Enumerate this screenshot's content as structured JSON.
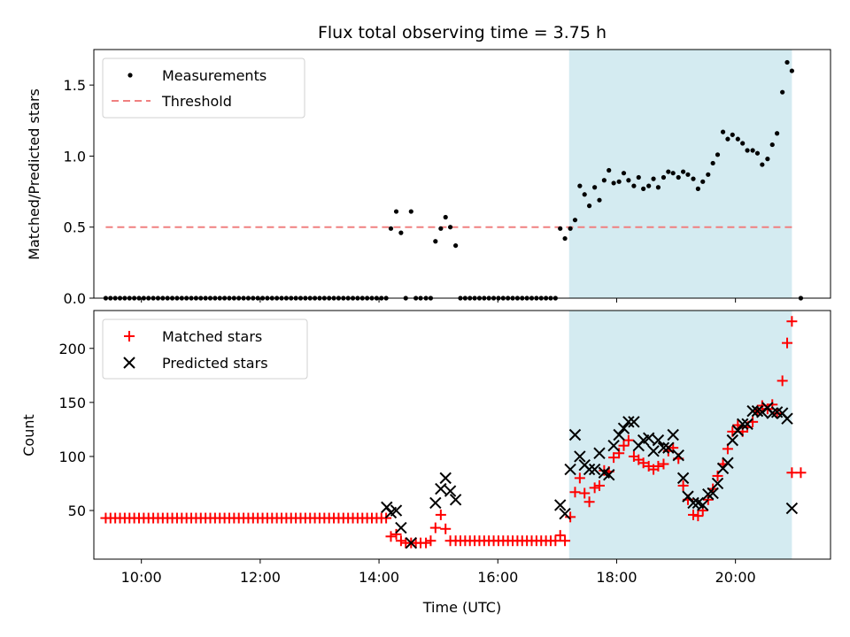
{
  "chart_data": [
    {
      "type": "scatter",
      "title": "Flux total observing time = 3.75 h",
      "xlabel": "",
      "ylabel": "Matched/Predicted stars",
      "xlim": [
        9.2,
        21.6
      ],
      "ylim": [
        0,
        1.75
      ],
      "yticks": [
        0,
        0.5,
        1.0,
        1.5
      ],
      "ytick_labels": [
        "0.0",
        "0.5",
        "1.0",
        "1.5"
      ],
      "xticks": [
        10,
        12,
        14,
        16,
        18,
        20
      ],
      "shaded_x": [
        17.2,
        20.95
      ],
      "shade_color": "#d4ebf1",
      "legend_position": "upper left",
      "legend": [
        "Measurements",
        "Threshold"
      ],
      "threshold": {
        "name": "Threshold",
        "y": 0.5,
        "x": [
          9.4,
          21.0
        ],
        "color": "#f08080",
        "style": "dashed"
      },
      "measurements_color": "#000000",
      "measurements": {
        "name": "Measurements",
        "x": [
          9.4,
          9.48,
          9.56,
          9.64,
          9.72,
          9.8,
          9.88,
          9.96,
          10.04,
          10.12,
          10.2,
          10.28,
          10.36,
          10.44,
          10.52,
          10.6,
          10.68,
          10.76,
          10.84,
          10.92,
          11.0,
          11.08,
          11.16,
          11.24,
          11.32,
          11.4,
          11.48,
          11.56,
          11.64,
          11.72,
          11.8,
          11.88,
          11.96,
          12.04,
          12.12,
          12.2,
          12.28,
          12.36,
          12.44,
          12.52,
          12.6,
          12.68,
          12.76,
          12.84,
          12.92,
          13.0,
          13.08,
          13.16,
          13.24,
          13.32,
          13.4,
          13.48,
          13.56,
          13.64,
          13.72,
          13.8,
          13.88,
          13.96,
          14.04,
          14.12,
          14.2,
          14.29,
          14.37,
          14.45,
          14.54,
          14.62,
          14.7,
          14.79,
          14.87,
          14.95,
          15.04,
          15.12,
          15.2,
          15.29,
          15.37,
          15.45,
          15.53,
          15.61,
          15.69,
          15.77,
          15.85,
          15.93,
          16.01,
          16.09,
          16.17,
          16.25,
          16.33,
          16.41,
          16.49,
          16.57,
          16.65,
          16.73,
          16.81,
          16.89,
          16.97,
          17.05,
          17.13,
          17.22,
          17.3,
          17.38,
          17.46,
          17.54,
          17.63,
          17.71,
          17.79,
          17.87,
          17.95,
          18.04,
          18.12,
          18.2,
          18.29,
          18.37,
          18.45,
          18.54,
          18.62,
          18.7,
          18.79,
          18.87,
          18.95,
          19.04,
          19.12,
          19.2,
          19.29,
          19.37,
          19.45,
          19.54,
          19.62,
          19.7,
          19.79,
          19.87,
          19.95,
          20.04,
          20.12,
          20.2,
          20.29,
          20.37,
          20.45,
          20.54,
          20.62,
          20.7,
          20.79,
          20.87,
          20.95,
          21.1
        ],
        "y": [
          0,
          0,
          0,
          0,
          0,
          0,
          0,
          0,
          0,
          0,
          0,
          0,
          0,
          0,
          0,
          0,
          0,
          0,
          0,
          0,
          0,
          0,
          0,
          0,
          0,
          0,
          0,
          0,
          0,
          0,
          0,
          0,
          0,
          0,
          0,
          0,
          0,
          0,
          0,
          0,
          0,
          0,
          0,
          0,
          0,
          0,
          0,
          0,
          0,
          0,
          0,
          0,
          0,
          0,
          0,
          0,
          0,
          0,
          0,
          0,
          0.49,
          0.61,
          0.46,
          0,
          0.61,
          0,
          0,
          0,
          0,
          0.4,
          0.49,
          0.57,
          0.5,
          0.37,
          0,
          0,
          0,
          0,
          0,
          0,
          0,
          0,
          0,
          0,
          0,
          0,
          0,
          0,
          0,
          0,
          0,
          0,
          0,
          0,
          0,
          0.49,
          0.42,
          0.49,
          0.55,
          0.79,
          0.73,
          0.65,
          0.78,
          0.69,
          0.83,
          0.9,
          0.81,
          0.82,
          0.88,
          0.83,
          0.79,
          0.85,
          0.77,
          0.79,
          0.84,
          0.78,
          0.85,
          0.89,
          0.88,
          0.85,
          0.89,
          0.87,
          0.84,
          0.77,
          0.82,
          0.87,
          0.95,
          1.01,
          1.17,
          1.12,
          1.15,
          1.12,
          1.09,
          1.04,
          1.04,
          1.02,
          0.94,
          0.98,
          1.08,
          1.16,
          1.45,
          1.66,
          1.6,
          0
        ]
      }
    },
    {
      "type": "scatter",
      "title": "",
      "xlabel": "Time (UTC)",
      "ylabel": "Count",
      "xlim": [
        9.2,
        21.6
      ],
      "ylim": [
        5,
        235
      ],
      "yticks": [
        50,
        100,
        150,
        200
      ],
      "xticks": [
        10,
        12,
        14,
        16,
        18,
        20
      ],
      "xtick_labels": [
        "10:00",
        "12:00",
        "14:00",
        "16:00",
        "18:00",
        "20:00"
      ],
      "shaded_x": [
        17.2,
        20.95
      ],
      "shade_color": "#d4ebf1",
      "legend_position": "upper left",
      "legend": [
        "Matched stars",
        "Predicted stars"
      ],
      "series": [
        {
          "name": "Matched stars",
          "marker": "+",
          "color": "#ff0000",
          "x": [
            9.4,
            9.48,
            9.56,
            9.64,
            9.72,
            9.8,
            9.88,
            9.96,
            10.04,
            10.12,
            10.2,
            10.28,
            10.36,
            10.44,
            10.52,
            10.6,
            10.68,
            10.76,
            10.84,
            10.92,
            11.0,
            11.08,
            11.16,
            11.24,
            11.32,
            11.4,
            11.48,
            11.56,
            11.64,
            11.72,
            11.8,
            11.88,
            11.96,
            12.04,
            12.12,
            12.2,
            12.28,
            12.36,
            12.44,
            12.52,
            12.6,
            12.68,
            12.76,
            12.84,
            12.92,
            13.0,
            13.08,
            13.16,
            13.24,
            13.32,
            13.4,
            13.48,
            13.56,
            13.64,
            13.72,
            13.8,
            13.88,
            13.96,
            14.04,
            14.12,
            14.2,
            14.29,
            14.37,
            14.45,
            14.54,
            14.62,
            14.7,
            14.79,
            14.87,
            14.95,
            15.04,
            15.12,
            15.2,
            15.29,
            15.37,
            15.45,
            15.53,
            15.61,
            15.69,
            15.77,
            15.85,
            15.93,
            16.01,
            16.09,
            16.17,
            16.25,
            16.33,
            16.41,
            16.49,
            16.57,
            16.65,
            16.73,
            16.81,
            16.89,
            16.97,
            17.05,
            17.13,
            17.22,
            17.3,
            17.38,
            17.46,
            17.54,
            17.63,
            17.71,
            17.79,
            17.87,
            17.95,
            18.04,
            18.12,
            18.2,
            18.29,
            18.37,
            18.45,
            18.54,
            18.62,
            18.7,
            18.79,
            18.87,
            18.95,
            19.04,
            19.12,
            19.2,
            19.29,
            19.37,
            19.45,
            19.54,
            19.62,
            19.7,
            19.79,
            19.87,
            19.95,
            20.04,
            20.12,
            20.2,
            20.29,
            20.37,
            20.45,
            20.54,
            20.62,
            20.7,
            20.79,
            20.87,
            20.95,
            21.1
          ],
          "values": [
            43,
            43,
            43,
            43,
            43,
            43,
            43,
            43,
            43,
            43,
            43,
            43,
            43,
            43,
            43,
            43,
            43,
            43,
            43,
            43,
            43,
            43,
            43,
            43,
            43,
            43,
            43,
            43,
            43,
            43,
            43,
            43,
            43,
            43,
            43,
            43,
            43,
            43,
            43,
            43,
            43,
            43,
            43,
            43,
            43,
            43,
            43,
            43,
            43,
            43,
            43,
            43,
            43,
            43,
            43,
            43,
            43,
            43,
            43,
            43,
            26,
            28,
            22,
            20,
            20,
            20,
            20,
            20,
            22,
            34,
            46,
            33,
            22,
            22,
            22,
            22,
            22,
            22,
            22,
            22,
            22,
            22,
            22,
            22,
            22,
            22,
            22,
            22,
            22,
            22,
            22,
            22,
            22,
            22,
            22,
            27,
            22,
            44,
            67,
            80,
            66,
            58,
            71,
            73,
            87,
            86,
            99,
            103,
            110,
            115,
            100,
            97,
            94,
            91,
            88,
            91,
            93,
            105,
            108,
            98,
            73,
            60,
            46,
            45,
            50,
            60,
            70,
            82,
            93,
            107,
            123,
            129,
            123,
            127,
            132,
            142,
            147,
            144,
            148,
            140,
            170,
            205,
            225,
            85
          ],
          "extra_points": [
            [
              20.95,
              85
            ]
          ]
        },
        {
          "name": "Predicted stars",
          "marker": "x",
          "color": "#000000",
          "x": [
            14.13,
            14.2,
            14.29,
            14.37,
            14.54,
            14.95,
            15.04,
            15.12,
            15.2,
            15.29,
            17.05,
            17.13,
            17.22,
            17.3,
            17.38,
            17.46,
            17.54,
            17.63,
            17.71,
            17.79,
            17.87,
            17.95,
            18.04,
            18.12,
            18.2,
            18.29,
            18.37,
            18.45,
            18.54,
            18.62,
            18.7,
            18.79,
            18.87,
            18.95,
            19.04,
            19.12,
            19.2,
            19.29,
            19.37,
            19.45,
            19.54,
            19.62,
            19.7,
            19.79,
            19.87,
            19.95,
            20.04,
            20.12,
            20.2,
            20.29,
            20.37,
            20.45,
            20.54,
            20.62,
            20.7,
            20.79,
            20.87,
            20.95
          ],
          "values": [
            53,
            48,
            50,
            34,
            20,
            57,
            70,
            80,
            68,
            60,
            55,
            47,
            88,
            120,
            100,
            92,
            88,
            88,
            103,
            85,
            83,
            110,
            120,
            126,
            132,
            132,
            110,
            115,
            117,
            105,
            115,
            108,
            108,
            120,
            101,
            80,
            63,
            57,
            57,
            55,
            65,
            66,
            75,
            89,
            94,
            115,
            124,
            130,
            130,
            142,
            142,
            141,
            145,
            140,
            141,
            140,
            135,
            52
          ]
        }
      ]
    }
  ]
}
